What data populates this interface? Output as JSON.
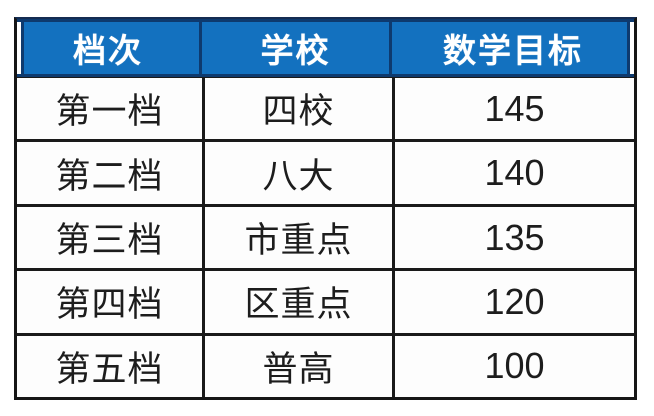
{
  "table": {
    "columns": [
      {
        "key": "tier",
        "label": "档次"
      },
      {
        "key": "school",
        "label": "学校"
      },
      {
        "key": "math_target",
        "label": "数学目标"
      }
    ],
    "rows": [
      {
        "tier": "第一档",
        "school": "四校",
        "math_target": "145"
      },
      {
        "tier": "第二档",
        "school": "八大",
        "math_target": "140"
      },
      {
        "tier": "第三档",
        "school": "市重点",
        "math_target": "135"
      },
      {
        "tier": "第四档",
        "school": "区重点",
        "math_target": "120"
      },
      {
        "tier": "第五档",
        "school": "普高",
        "math_target": "100"
      }
    ],
    "colors": {
      "header_bg": "#1371bf",
      "header_border": "#0e3a6e",
      "header_text": "#ffffff",
      "grid_border": "#1a1a1a",
      "body_text": "#1d1d1d",
      "body_bg": "#fdfdfd",
      "page_bg": "#ffffff"
    }
  },
  "chart_data": {
    "type": "table",
    "title": "",
    "columns": [
      "档次",
      "学校",
      "数学目标"
    ],
    "rows": [
      [
        "第一档",
        "四校",
        145
      ],
      [
        "第二档",
        "八大",
        140
      ],
      [
        "第三档",
        "市重点",
        135
      ],
      [
        "第四档",
        "区重点",
        120
      ],
      [
        "第五档",
        "普高",
        100
      ]
    ]
  }
}
